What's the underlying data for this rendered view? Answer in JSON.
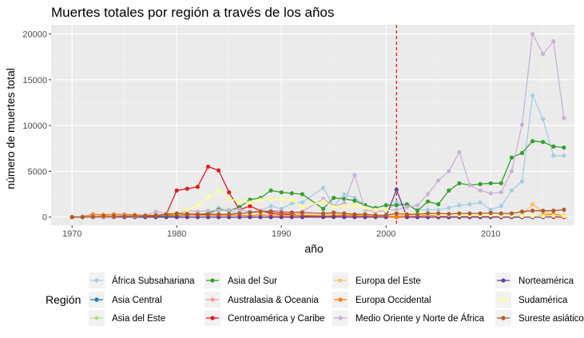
{
  "chart_data": {
    "type": "line",
    "title": "Muertes totales por región a través de los años",
    "xlabel": "año",
    "ylabel": "número de muertes total",
    "xlim": [
      1968,
      2018
    ],
    "ylim": [
      -900,
      21000
    ],
    "x_ticks": [
      1970,
      1980,
      1990,
      2000,
      2010
    ],
    "y_ticks": [
      0,
      5000,
      10000,
      15000,
      20000
    ],
    "grid": true,
    "reference_line": {
      "x": 2001,
      "color": "#ff0000",
      "style": "dashed"
    },
    "legend": {
      "title": "Región",
      "position": "bottom"
    },
    "x": [
      1970,
      1971,
      1972,
      1973,
      1974,
      1975,
      1976,
      1977,
      1978,
      1979,
      1980,
      1981,
      1982,
      1983,
      1984,
      1985,
      1986,
      1987,
      1988,
      1989,
      1990,
      1991,
      1992,
      1994,
      1995,
      1996,
      1997,
      1998,
      1999,
      2000,
      2001,
      2002,
      2003,
      2004,
      2005,
      2006,
      2007,
      2008,
      2009,
      2010,
      2011,
      2012,
      2013,
      2014,
      2015,
      2016,
      2017
    ],
    "series": [
      {
        "name": "África Subsahariana",
        "color": "#a6cee3",
        "values": [
          0,
          0,
          20,
          30,
          30,
          40,
          60,
          80,
          150,
          150,
          200,
          250,
          280,
          300,
          1000,
          700,
          400,
          500,
          700,
          1200,
          900,
          1500,
          1600,
          3200,
          1200,
          2500,
          2100,
          1300,
          900,
          600,
          1600,
          1300,
          800,
          800,
          800,
          1000,
          1300,
          1400,
          1600,
          800,
          1200,
          2900,
          3900,
          13300,
          10700,
          6700,
          6700
        ]
      },
      {
        "name": "Asia Central",
        "color": "#1f78b4",
        "values": [
          0,
          0,
          0,
          0,
          0,
          0,
          0,
          0,
          0,
          0,
          0,
          0,
          0,
          0,
          0,
          0,
          0,
          0,
          0,
          0,
          0,
          0,
          20,
          40,
          30,
          20,
          20,
          10,
          80,
          20,
          20,
          30,
          20,
          60,
          40,
          20,
          20,
          20,
          20,
          30,
          60,
          30,
          20,
          20,
          30,
          30,
          20
        ]
      },
      {
        "name": "Asia del Este",
        "color": "#b2df8a",
        "values": [
          0,
          0,
          0,
          0,
          0,
          0,
          0,
          0,
          0,
          0,
          0,
          0,
          0,
          0,
          0,
          0,
          0,
          0,
          0,
          0,
          0,
          0,
          50,
          50,
          50,
          200,
          100,
          50,
          50,
          50,
          50,
          50,
          50,
          50,
          50,
          50,
          50,
          150,
          100,
          100,
          50,
          50,
          50,
          50,
          50,
          50,
          50
        ]
      },
      {
        "name": "Asia del Sur",
        "color": "#33a02c",
        "values": [
          20,
          10,
          20,
          30,
          40,
          50,
          60,
          80,
          100,
          120,
          150,
          200,
          300,
          400,
          800,
          700,
          1100,
          1900,
          2100,
          2900,
          2700,
          2600,
          2500,
          900,
          2100,
          2000,
          1800,
          1300,
          1000,
          1300,
          1300,
          1400,
          700,
          1700,
          1400,
          2900,
          3700,
          3500,
          3600,
          3700,
          3700,
          6500,
          7000,
          8300,
          8200,
          7700,
          7600
        ]
      },
      {
        "name": "Australasia & Oceania",
        "color": "#fb9a99",
        "values": [
          0,
          0,
          0,
          0,
          0,
          0,
          0,
          0,
          0,
          0,
          0,
          0,
          0,
          0,
          0,
          0,
          0,
          0,
          0,
          0,
          0,
          0,
          0,
          0,
          0,
          0,
          0,
          0,
          100,
          20,
          0,
          0,
          10,
          10,
          10,
          10,
          10,
          10,
          20,
          10,
          10,
          10,
          10,
          10,
          10,
          30,
          10
        ]
      },
      {
        "name": "Centroamérica y Caribe",
        "color": "#e31a1c",
        "values": [
          0,
          0,
          20,
          30,
          30,
          40,
          60,
          100,
          100,
          300,
          2900,
          3100,
          3300,
          5500,
          5100,
          2700,
          800,
          1200,
          700,
          400,
          300,
          300,
          100,
          50,
          50,
          30,
          20,
          20,
          20,
          20,
          20,
          10,
          10,
          10,
          10,
          10,
          10,
          10,
          20,
          10,
          10,
          10,
          10,
          10,
          10,
          20,
          10
        ]
      },
      {
        "name": "Europa del Este",
        "color": "#fdbf6f",
        "values": [
          0,
          0,
          0,
          0,
          0,
          0,
          0,
          0,
          0,
          0,
          0,
          0,
          0,
          0,
          0,
          0,
          0,
          0,
          0,
          0,
          0,
          0,
          500,
          400,
          300,
          200,
          250,
          150,
          200,
          150,
          100,
          200,
          100,
          100,
          50,
          50,
          50,
          100,
          100,
          100,
          150,
          150,
          200,
          1400,
          600,
          200,
          100
        ]
      },
      {
        "name": "Europa Occidental",
        "color": "#ff7f00",
        "values": [
          30,
          50,
          300,
          250,
          300,
          300,
          250,
          200,
          200,
          250,
          200,
          250,
          200,
          200,
          200,
          200,
          200,
          150,
          250,
          150,
          150,
          150,
          200,
          150,
          150,
          200,
          150,
          100,
          80,
          50,
          50,
          60,
          50,
          250,
          100,
          60,
          50,
          50,
          40,
          30,
          20,
          20,
          30,
          30,
          200,
          300,
          150
        ]
      },
      {
        "name": "Medio Oriente y Norte de África",
        "color": "#cab2d6",
        "values": [
          20,
          50,
          100,
          100,
          100,
          200,
          150,
          200,
          600,
          400,
          400,
          700,
          600,
          700,
          700,
          800,
          800,
          600,
          700,
          700,
          700,
          500,
          600,
          2000,
          1200,
          1500,
          4600,
          800,
          600,
          700,
          800,
          1100,
          1300,
          2500,
          4000,
          5000,
          7100,
          3500,
          2900,
          2600,
          2700,
          5000,
          10100,
          20000,
          17800,
          19200,
          10800
        ]
      },
      {
        "name": "Norteamérica",
        "color": "#6a3d9a",
        "values": [
          0,
          0,
          0,
          0,
          0,
          0,
          0,
          0,
          0,
          0,
          0,
          0,
          0,
          0,
          0,
          0,
          0,
          0,
          0,
          0,
          0,
          0,
          0,
          0,
          20,
          10,
          10,
          10,
          10,
          10,
          3000,
          10,
          10,
          10,
          10,
          10,
          10,
          10,
          10,
          20,
          10,
          10,
          10,
          10,
          20,
          60,
          100
        ]
      },
      {
        "name": "Sudamérica",
        "color": "#ffff99",
        "values": [
          0,
          0,
          30,
          50,
          80,
          100,
          100,
          150,
          200,
          300,
          500,
          800,
          1200,
          2200,
          2900,
          2000,
          1700,
          1600,
          1900,
          2000,
          1900,
          1900,
          1100,
          1700,
          1100,
          1200,
          1200,
          1000,
          800,
          800,
          500,
          400,
          300,
          300,
          250,
          250,
          200,
          200,
          200,
          200,
          150,
          150,
          100,
          100,
          100,
          150,
          100
        ]
      },
      {
        "name": "Sureste asiático",
        "color": "#b15928",
        "values": [
          0,
          0,
          50,
          100,
          100,
          100,
          150,
          150,
          200,
          300,
          400,
          350,
          300,
          300,
          300,
          300,
          400,
          500,
          600,
          600,
          500,
          500,
          500,
          400,
          500,
          400,
          300,
          300,
          200,
          200,
          400,
          300,
          300,
          400,
          400,
          350,
          400,
          400,
          400,
          450,
          400,
          400,
          600,
          700,
          700,
          700,
          800
        ]
      }
    ]
  }
}
